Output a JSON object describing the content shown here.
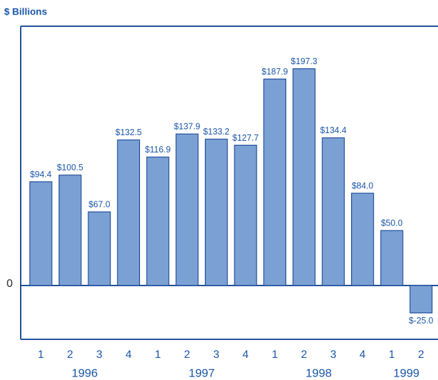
{
  "chart_data": {
    "type": "bar",
    "y_label": "$ Billions",
    "groups": [
      {
        "name": "1996",
        "categories": [
          "1",
          "2",
          "3",
          "4"
        ]
      },
      {
        "name": "1997",
        "categories": [
          "1",
          "2",
          "3",
          "4"
        ]
      },
      {
        "name": "1998",
        "categories": [
          "1",
          "2",
          "3",
          "4"
        ]
      },
      {
        "name": "1999",
        "categories": [
          "1",
          "2"
        ]
      }
    ],
    "values": [
      94.4,
      100.5,
      67.0,
      132.5,
      116.9,
      137.9,
      133.2,
      127.7,
      187.9,
      197.3,
      134.4,
      84.0,
      50.0,
      -25.0
    ],
    "value_labels": [
      "$94.4",
      "$100.5",
      "$67.0",
      "$132.5",
      "$116.9",
      "$137.9",
      "$133.2",
      "$127.7",
      "$187.9",
      "$197.3",
      "$134.4",
      "$84.0",
      "$50.0",
      "$-25.0"
    ],
    "color": "#7ba0d4",
    "ylim": [
      -49,
      236
    ],
    "yticks": [
      0
    ]
  }
}
